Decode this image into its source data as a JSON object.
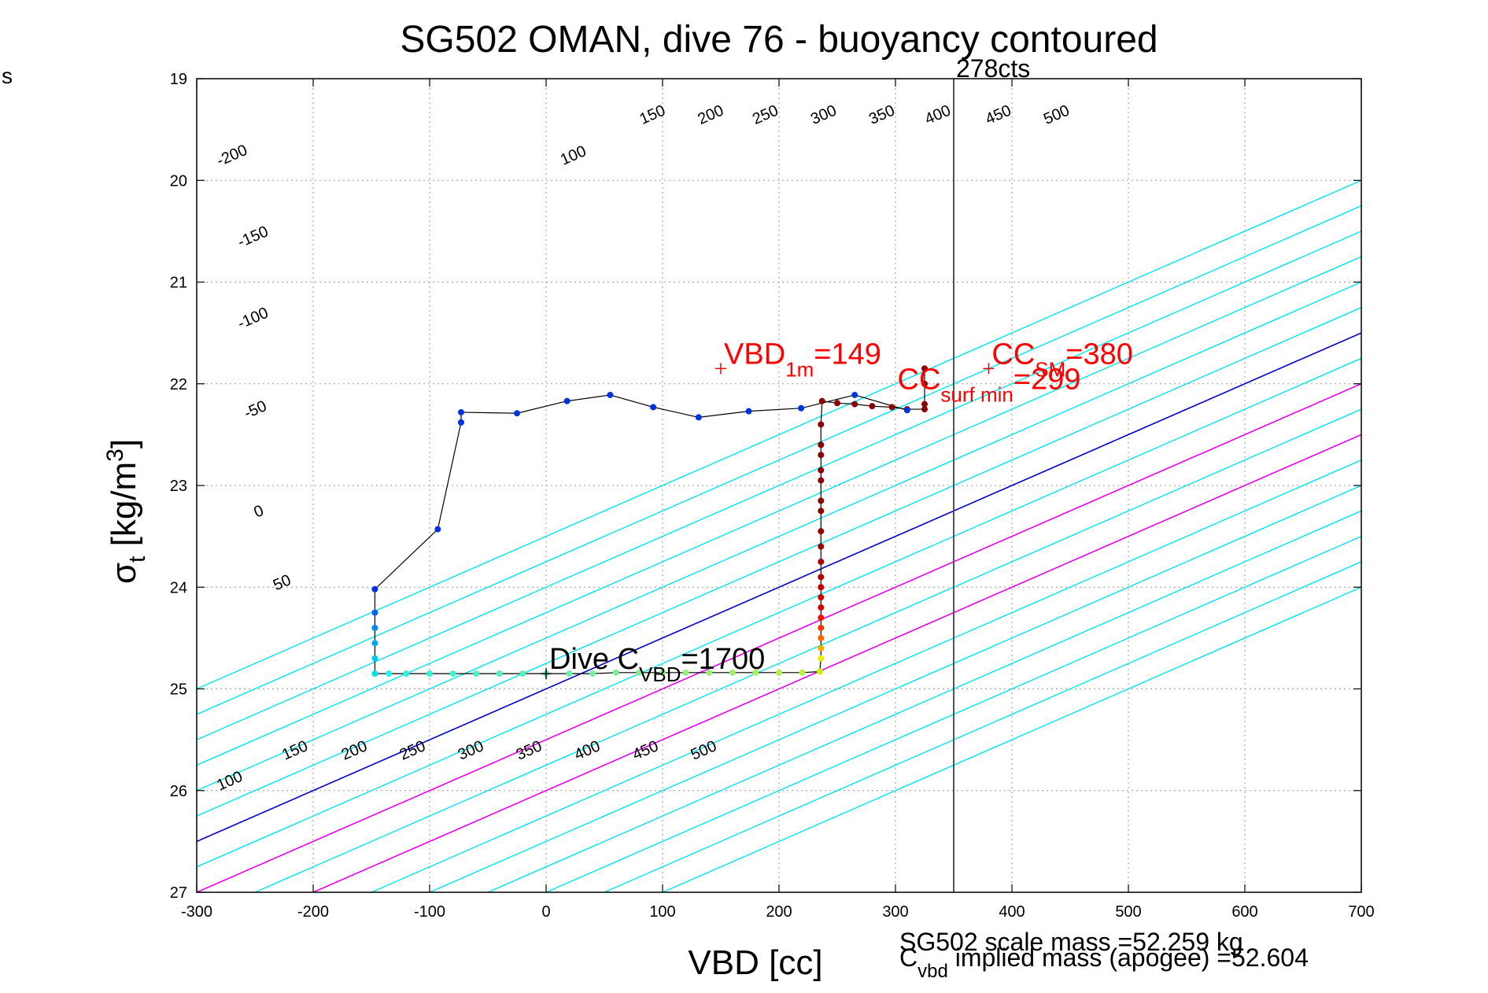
{
  "page": {
    "corner_label": "s"
  },
  "chart_data": {
    "type": "line",
    "title": "SG502 OMAN, dive 76 - buoyancy contoured",
    "xlabel": "VBD [cc]",
    "ylabel": "σ_t [kg/m³]",
    "xlim": [
      -300,
      700
    ],
    "ylim": [
      19,
      27
    ],
    "y_reversed": true,
    "grid": true,
    "x_ticks": [
      -300,
      -200,
      -100,
      0,
      100,
      200,
      300,
      400,
      500,
      600,
      700
    ],
    "y_ticks": [
      19,
      20,
      21,
      22,
      23,
      24,
      25,
      26,
      27
    ],
    "contour_lines": {
      "slope_cc_per_sigma": -200,
      "levels": [
        -300,
        -250,
        -200,
        -150,
        -100,
        -50,
        0,
        50,
        100,
        150,
        200,
        250,
        300,
        350,
        400,
        450,
        500
      ],
      "cyan_color": "#00e5ee",
      "zero_color": "#0000cc",
      "magenta_color": "#ee00ee",
      "magenta_levels": [
        100,
        200
      ],
      "top_labels": [
        {
          "text": "-200",
          "x": -268,
          "y": 19.8
        },
        {
          "text": "-150",
          "x": -250,
          "y": 20.6
        },
        {
          "text": "-100",
          "x": -250,
          "y": 21.4
        },
        {
          "text": "-50",
          "x": -248,
          "y": 22.3
        },
        {
          "text": "0",
          "x": -245,
          "y": 23.3
        },
        {
          "text": "50",
          "x": -225,
          "y": 24.0
        },
        {
          "text": "100",
          "x": 25,
          "y": 19.8
        },
        {
          "text": "150",
          "x": 93,
          "y": 19.4
        },
        {
          "text": "200",
          "x": 143,
          "y": 19.4
        },
        {
          "text": "250",
          "x": 190,
          "y": 19.4
        },
        {
          "text": "300",
          "x": 240,
          "y": 19.4
        },
        {
          "text": "350",
          "x": 290,
          "y": 19.4
        },
        {
          "text": "400",
          "x": 338,
          "y": 19.4
        },
        {
          "text": "450",
          "x": 390,
          "y": 19.4
        },
        {
          "text": "500",
          "x": 440,
          "y": 19.4
        }
      ],
      "bottom_labels": [
        {
          "text": "100",
          "x": -270,
          "y": 25.95
        },
        {
          "text": "150",
          "x": -214,
          "y": 25.65
        },
        {
          "text": "200",
          "x": -163,
          "y": 25.65
        },
        {
          "text": "250",
          "x": -113,
          "y": 25.65
        },
        {
          "text": "300",
          "x": -63,
          "y": 25.65
        },
        {
          "text": "350",
          "x": -13,
          "y": 25.65
        },
        {
          "text": "400",
          "x": 37,
          "y": 25.65
        },
        {
          "text": "450",
          "x": 87,
          "y": 25.65
        },
        {
          "text": "500",
          "x": 137,
          "y": 25.65
        }
      ]
    },
    "dive_track": {
      "line_color": "#000000",
      "points": [
        {
          "x": 325,
          "y": 21.85,
          "c": "#8b0000"
        },
        {
          "x": 325,
          "y": 22.0,
          "c": "#8b0000"
        },
        {
          "x": 325,
          "y": 22.2,
          "c": "#8b0000"
        },
        {
          "x": 325,
          "y": 22.25,
          "c": "#8b0000"
        },
        {
          "x": 310,
          "y": 22.25,
          "c": "#8b0000"
        },
        {
          "x": 297,
          "y": 22.23,
          "c": "#8b0000"
        },
        {
          "x": 280,
          "y": 22.22,
          "c": "#8b0000"
        },
        {
          "x": 265,
          "y": 22.2,
          "c": "#8b0000"
        },
        {
          "x": 250,
          "y": 22.19,
          "c": "#8b0000"
        },
        {
          "x": 237,
          "y": 22.17,
          "c": "#8b0000"
        },
        {
          "x": 236,
          "y": 22.4,
          "c": "#8b0000"
        },
        {
          "x": 236,
          "y": 22.6,
          "c": "#8b0000"
        },
        {
          "x": 236,
          "y": 22.7,
          "c": "#8b0000"
        },
        {
          "x": 236,
          "y": 22.85,
          "c": "#8b0000"
        },
        {
          "x": 236,
          "y": 22.95,
          "c": "#8b0000"
        },
        {
          "x": 236,
          "y": 23.15,
          "c": "#8b0000"
        },
        {
          "x": 236,
          "y": 23.25,
          "c": "#8b0000"
        },
        {
          "x": 236,
          "y": 23.45,
          "c": "#9a0000"
        },
        {
          "x": 236,
          "y": 23.6,
          "c": "#a00000"
        },
        {
          "x": 236,
          "y": 23.75,
          "c": "#aa0000"
        },
        {
          "x": 236,
          "y": 23.9,
          "c": "#b40000"
        },
        {
          "x": 236,
          "y": 24.0,
          "c": "#c00000"
        },
        {
          "x": 236,
          "y": 24.1,
          "c": "#cc0000"
        },
        {
          "x": 236,
          "y": 24.2,
          "c": "#dd0000"
        },
        {
          "x": 236,
          "y": 24.3,
          "c": "#ee1100"
        },
        {
          "x": 236,
          "y": 24.4,
          "c": "#ff3300"
        },
        {
          "x": 236,
          "y": 24.5,
          "c": "#ff6600"
        },
        {
          "x": 236,
          "y": 24.6,
          "c": "#ffaa00"
        },
        {
          "x": 236,
          "y": 24.7,
          "c": "#eeee00"
        },
        {
          "x": 235,
          "y": 24.83,
          "c": "#c8f000"
        },
        {
          "x": 220,
          "y": 24.84,
          "c": "#b8f040"
        },
        {
          "x": 200,
          "y": 24.84,
          "c": "#b0f050"
        },
        {
          "x": 180,
          "y": 24.84,
          "c": "#a8f060"
        },
        {
          "x": 160,
          "y": 24.84,
          "c": "#a0f070"
        },
        {
          "x": 140,
          "y": 24.84,
          "c": "#98f078"
        },
        {
          "x": 120,
          "y": 24.84,
          "c": "#90f080"
        },
        {
          "x": 100,
          "y": 24.84,
          "c": "#88f088"
        },
        {
          "x": 80,
          "y": 24.84,
          "c": "#80f090"
        },
        {
          "x": 60,
          "y": 24.84,
          "c": "#78f098"
        },
        {
          "x": 40,
          "y": 24.85,
          "c": "#70f0a0"
        },
        {
          "x": 20,
          "y": 24.85,
          "c": "#68f0a8"
        },
        {
          "x": 0,
          "y": 24.85,
          "c": "#60f0b0"
        },
        {
          "x": -20,
          "y": 24.85,
          "c": "#58f0b8"
        },
        {
          "x": -40,
          "y": 24.85,
          "c": "#50f0c0"
        },
        {
          "x": -60,
          "y": 24.85,
          "c": "#48f0c8"
        },
        {
          "x": -80,
          "y": 24.85,
          "c": "#40f0d0"
        },
        {
          "x": -100,
          "y": 24.85,
          "c": "#38f0d8"
        },
        {
          "x": -120,
          "y": 24.85,
          "c": "#30f0e0"
        },
        {
          "x": -135,
          "y": 24.85,
          "c": "#28f0e8"
        },
        {
          "x": -147,
          "y": 24.85,
          "c": "#00e0f0"
        },
        {
          "x": -147,
          "y": 24.7,
          "c": "#00c8f0"
        },
        {
          "x": -147,
          "y": 24.55,
          "c": "#00a8f0"
        },
        {
          "x": -147,
          "y": 24.4,
          "c": "#0088f0"
        },
        {
          "x": -147,
          "y": 24.25,
          "c": "#0060ee"
        },
        {
          "x": -147,
          "y": 24.02,
          "c": "#0033dd"
        },
        {
          "x": -93,
          "y": 23.43,
          "c": "#0033dd"
        },
        {
          "x": -73,
          "y": 22.38,
          "c": "#0033dd"
        },
        {
          "x": -73,
          "y": 22.28,
          "c": "#0033dd"
        },
        {
          "x": -25,
          "y": 22.29,
          "c": "#0033dd"
        },
        {
          "x": 18,
          "y": 22.17,
          "c": "#0033dd"
        },
        {
          "x": 55,
          "y": 22.11,
          "c": "#0033dd"
        },
        {
          "x": 92,
          "y": 22.23,
          "c": "#0033dd"
        },
        {
          "x": 131,
          "y": 22.33,
          "c": "#0033dd"
        },
        {
          "x": 174,
          "y": 22.27,
          "c": "#0033dd"
        },
        {
          "x": 219,
          "y": 22.24,
          "c": "#0033dd"
        },
        {
          "x": 265,
          "y": 22.11,
          "c": "#0033dd"
        },
        {
          "x": 310,
          "y": 22.26,
          "c": "#0033dd"
        }
      ]
    },
    "reference_line": {
      "x": 350,
      "label": "278cts",
      "color": "#555555"
    },
    "annotations": [
      {
        "name": "vbd-1m",
        "main": "VBD",
        "sub": "1m",
        "suffix": "=149",
        "x": 150,
        "y": 21.85,
        "color": "#ff0000",
        "marker": true
      },
      {
        "name": "cc-sm",
        "main": "CC",
        "sub": "SM",
        "suffix": "=380",
        "x": 380,
        "y": 21.85,
        "color": "#ff0000",
        "marker": true
      },
      {
        "name": "cc-surf-min",
        "main": "CC",
        "sub": "surf min",
        "suffix": "=299",
        "x": 299,
        "y": 22.1,
        "color": "#ff0000",
        "marker": false
      },
      {
        "name": "dive-cvbd",
        "main": "Dive C",
        "sub": "VBD",
        "suffix": "=1700",
        "x": 0,
        "y": 24.85,
        "color": "#000000",
        "marker": true
      }
    ],
    "footer_lines": [
      "SG502 scale mass =52.259 kg",
      "C_vbd implied mass (apogee) =52.604"
    ]
  }
}
